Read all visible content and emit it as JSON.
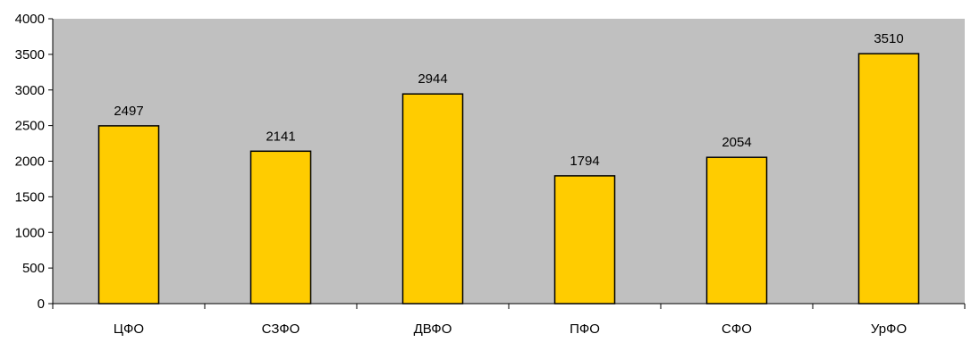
{
  "chart_data": {
    "type": "bar",
    "title": "",
    "xlabel": "",
    "ylabel": "",
    "categories": [
      "ЦФО",
      "СЗФО",
      "ДВФО",
      "ПФО",
      "СФО",
      "УрФО"
    ],
    "values": [
      2497,
      2141,
      2944,
      1794,
      2054,
      3510
    ],
    "value_labels": [
      "2497",
      "2141",
      "2944",
      "1794",
      "2054",
      "3510"
    ],
    "ylim": [
      0,
      4000
    ],
    "yticks": [
      0,
      500,
      1000,
      1500,
      2000,
      2500,
      3000,
      3500,
      4000
    ],
    "ytick_labels": [
      "0",
      "500",
      "1000",
      "1500",
      "2000",
      "2500",
      "3000",
      "3500",
      "4000"
    ],
    "grid": false,
    "legend": "none",
    "colors": {
      "plot_background": "#c0c0c0",
      "bar_fill": "#ffcc00",
      "bar_stroke": "#000000",
      "axis": "#000000"
    }
  }
}
